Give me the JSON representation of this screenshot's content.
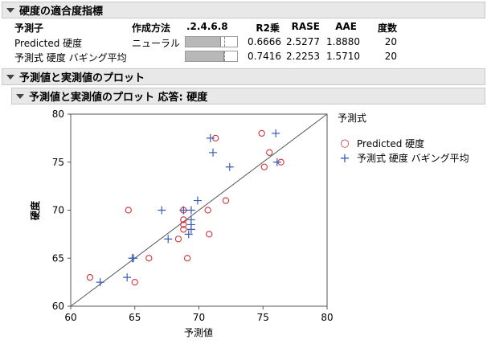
{
  "fit_section": {
    "title": "硬度の適合度指標",
    "headers": {
      "predictor": "予測子",
      "method": "作成方法",
      "scale": ".2.4.6.8",
      "r2": "R2乗",
      "rase": "RASE",
      "aae": "AAE",
      "freq": "度数"
    },
    "rows": [
      {
        "predictor": "Predicted 硬度",
        "method": "ニューラル",
        "r2_value": 0.6666,
        "r2": "0.6666",
        "rase": "2.5277",
        "aae": "1.8880",
        "freq": "20"
      },
      {
        "predictor": "予測式 硬度 バギング平均",
        "method": "",
        "r2_value": 0.7416,
        "r2": "0.7416",
        "rase": "2.2253",
        "aae": "1.5710",
        "freq": "20"
      }
    ]
  },
  "plot_section": {
    "title": "予測値と実測値のプロット"
  },
  "plot_sub": {
    "title": "予測値と実測値のプロット 応答: 硬度"
  },
  "legend": {
    "title": "予測式",
    "items": [
      {
        "label": "Predicted 硬度",
        "symbol": "○",
        "color": "#d0343c"
      },
      {
        "label": "予測式 硬度 バギング平均",
        "symbol": "+",
        "color": "#3b5cb8"
      }
    ]
  },
  "chart_data": {
    "type": "scatter",
    "xlabel": "予測値",
    "ylabel": "硬度",
    "xlim": [
      60,
      80
    ],
    "ylim": [
      60,
      80
    ],
    "xticks": [
      "60",
      "65",
      "70",
      "75",
      "80"
    ],
    "yticks": [
      "60",
      "65",
      "70",
      "75",
      "80"
    ],
    "diagonal_line": true,
    "series": [
      {
        "name": "Predicted 硬度",
        "marker": "circle",
        "color": "#d0343c",
        "points": [
          [
            61.5,
            63
          ],
          [
            64.5,
            70
          ],
          [
            65,
            62.5
          ],
          [
            66.1,
            65
          ],
          [
            68.4,
            67
          ],
          [
            68.8,
            68
          ],
          [
            68.8,
            68.5
          ],
          [
            68.8,
            69
          ],
          [
            68.8,
            70
          ],
          [
            69.1,
            65
          ],
          [
            70.7,
            70
          ],
          [
            70.8,
            67.5
          ],
          [
            71.3,
            77.5
          ],
          [
            72.1,
            71
          ],
          [
            74.9,
            78
          ],
          [
            75.1,
            74.5
          ],
          [
            75.5,
            76
          ],
          [
            76.4,
            75
          ]
        ]
      },
      {
        "name": "予測式 硬度 バギング平均",
        "marker": "plus",
        "color": "#3b5cb8",
        "points": [
          [
            62.3,
            62.5
          ],
          [
            64.4,
            63
          ],
          [
            64.8,
            65
          ],
          [
            64.9,
            65
          ],
          [
            67.1,
            70
          ],
          [
            67.6,
            67
          ],
          [
            68.8,
            70
          ],
          [
            69.2,
            67.5
          ],
          [
            69.4,
            68
          ],
          [
            69.4,
            68.5
          ],
          [
            69.4,
            69
          ],
          [
            69.4,
            70
          ],
          [
            69.9,
            71
          ],
          [
            70.9,
            77.5
          ],
          [
            71.1,
            76
          ],
          [
            72.4,
            74.5
          ],
          [
            76.0,
            78
          ],
          [
            76.1,
            75
          ]
        ]
      }
    ]
  }
}
